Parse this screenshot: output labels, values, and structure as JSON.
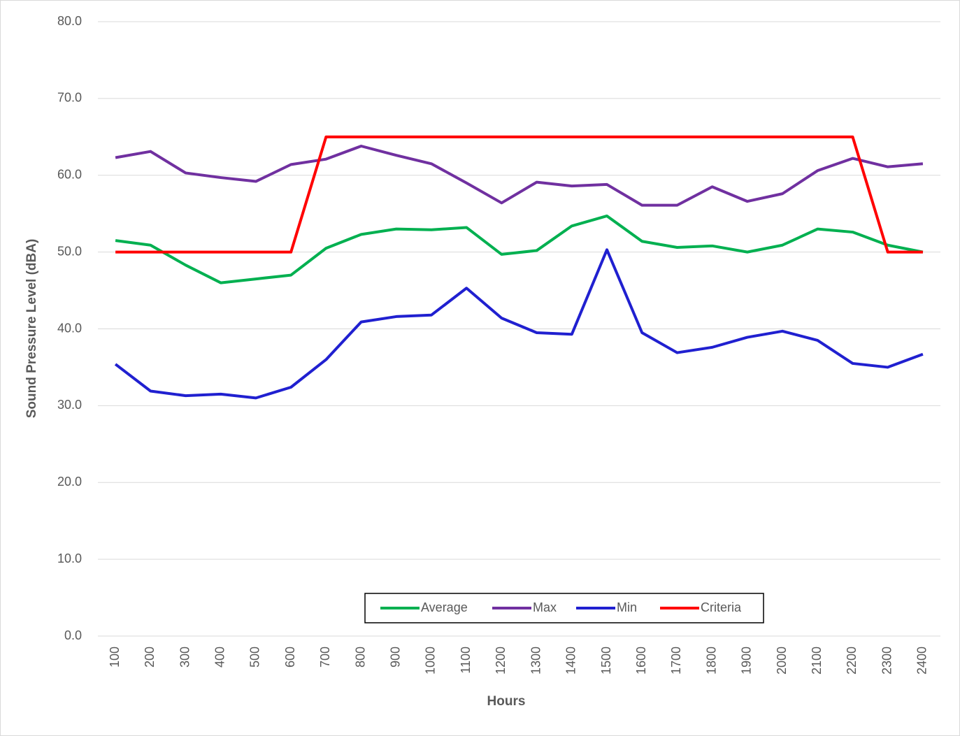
{
  "chart_data": {
    "type": "line",
    "x_label": "Hours",
    "y_label": "Sound Pressure Level (dBA)",
    "categories": [
      "100",
      "200",
      "300",
      "400",
      "500",
      "600",
      "700",
      "800",
      "900",
      "1000",
      "1100",
      "1200",
      "1300",
      "1400",
      "1500",
      "1600",
      "1700",
      "1800",
      "1900",
      "2000",
      "2100",
      "2200",
      "2300",
      "2400"
    ],
    "series": [
      {
        "name": "Average",
        "color": "#00b050",
        "values": [
          51.5,
          50.9,
          48.3,
          46.0,
          46.5,
          47.0,
          50.5,
          52.3,
          53.0,
          52.9,
          53.2,
          49.7,
          50.2,
          53.4,
          54.7,
          51.4,
          50.6,
          50.8,
          50.0,
          50.9,
          53.0,
          52.6,
          50.9,
          50.0
        ]
      },
      {
        "name": "Max",
        "color": "#7030a0",
        "values": [
          62.3,
          63.1,
          60.3,
          59.7,
          59.2,
          61.4,
          62.1,
          63.8,
          62.6,
          61.5,
          59.0,
          56.4,
          59.1,
          58.6,
          58.8,
          56.1,
          56.1,
          58.5,
          56.6,
          57.6,
          60.6,
          62.2,
          61.1,
          61.5
        ]
      },
      {
        "name": "Min",
        "color": "#2020d0",
        "values": [
          35.4,
          31.9,
          31.3,
          31.5,
          31.0,
          32.4,
          36.0,
          40.9,
          41.6,
          41.8,
          45.3,
          41.4,
          39.5,
          39.3,
          50.3,
          39.5,
          36.9,
          37.6,
          38.9,
          39.7,
          38.5,
          35.5,
          35.0,
          36.7
        ]
      },
      {
        "name": "Criteria",
        "color": "#ff0000",
        "values": [
          50,
          50,
          50,
          50,
          50,
          50,
          65,
          65,
          65,
          65,
          65,
          65,
          65,
          65,
          65,
          65,
          65,
          65,
          65,
          65,
          65,
          65,
          50,
          50
        ]
      }
    ],
    "ylim": [
      0,
      80
    ],
    "yticks": [
      {
        "value": 0,
        "label": "0.0"
      },
      {
        "value": 10,
        "label": "10.0"
      },
      {
        "value": 20,
        "label": "20.0"
      },
      {
        "value": 30,
        "label": "30.0"
      },
      {
        "value": 40,
        "label": "40.0"
      },
      {
        "value": 50,
        "label": "50.0"
      },
      {
        "value": 60,
        "label": "60.0"
      },
      {
        "value": 70,
        "label": "70.0"
      },
      {
        "value": 80,
        "label": "80.0"
      }
    ],
    "grid": true,
    "legend": "bottom"
  }
}
